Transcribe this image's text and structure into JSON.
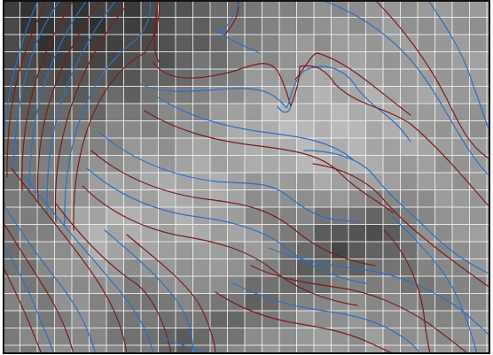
{
  "map": {
    "kind": "raster-dem-with-contours",
    "colors": {
      "frame": "#111111",
      "grid": "#f2f2f2",
      "contour_a": "#7a1c1c",
      "contour_b": "#2f6fc2"
    },
    "layers": {
      "raster": "grayscale-elevation",
      "grid_overlay": true,
      "contours_series": [
        "red",
        "blue"
      ]
    }
  }
}
